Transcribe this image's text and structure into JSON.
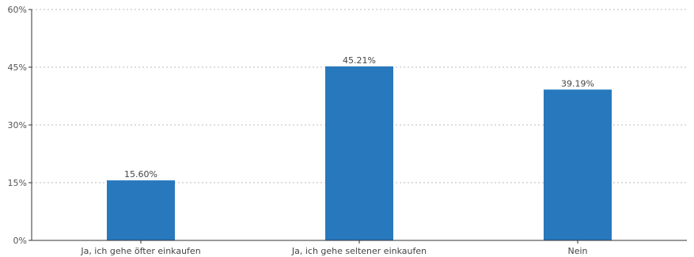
{
  "chart_data": {
    "type": "bar",
    "categories": [
      "Ja, ich gehe öfter einkaufen",
      "Ja, ich gehe seltener einkaufen",
      "Nein"
    ],
    "values": [
      15.6,
      45.21,
      39.19
    ],
    "data_labels": [
      "15.60%",
      "45.21%",
      "39.19%"
    ],
    "yticks": [
      0,
      15,
      30,
      45,
      60
    ],
    "ytick_labels": [
      "0%",
      "15%",
      "30%",
      "45%",
      "60%"
    ],
    "ylim": [
      0,
      60
    ],
    "grid": true,
    "colors": {
      "bar": "#2878BD"
    }
  }
}
